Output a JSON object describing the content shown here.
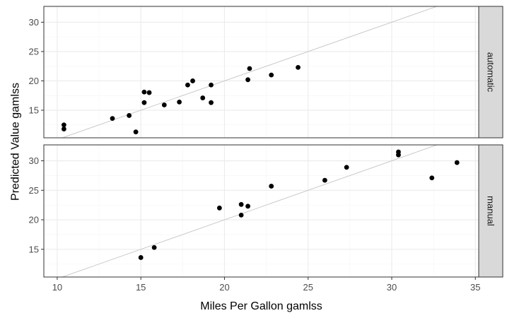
{
  "chart_data": {
    "type": "scatter",
    "xlabel": "Miles Per Gallon gamlss",
    "ylabel": "Predicted Value gamlss",
    "xlim": [
      9.2,
      35.2
    ],
    "ylim": [
      10.3,
      32.7
    ],
    "x_ticks": [
      10,
      15,
      20,
      25,
      30,
      35
    ],
    "y_ticks": [
      15,
      20,
      25,
      30
    ],
    "grid": true,
    "reference_line": "y = x",
    "colors": {
      "point": "#000000",
      "reference_line": "#bdbdbd",
      "grid_major": "#ebebeb",
      "grid_minor": "#f5f5f5",
      "panel_border": "#333333",
      "strip_fill": "#d9d9d9",
      "background": "#ffffff"
    },
    "panels": [
      {
        "label": "automatic",
        "points": [
          {
            "x": 10.4,
            "y": 12.5
          },
          {
            "x": 10.4,
            "y": 11.8
          },
          {
            "x": 13.3,
            "y": 13.6
          },
          {
            "x": 14.3,
            "y": 14.1
          },
          {
            "x": 14.7,
            "y": 11.3
          },
          {
            "x": 15.2,
            "y": 18.1
          },
          {
            "x": 15.2,
            "y": 16.3
          },
          {
            "x": 15.5,
            "y": 18.0
          },
          {
            "x": 16.4,
            "y": 15.9
          },
          {
            "x": 17.3,
            "y": 16.4
          },
          {
            "x": 17.8,
            "y": 19.3
          },
          {
            "x": 18.1,
            "y": 20.0
          },
          {
            "x": 18.7,
            "y": 17.1
          },
          {
            "x": 19.2,
            "y": 19.3
          },
          {
            "x": 19.2,
            "y": 16.3
          },
          {
            "x": 21.4,
            "y": 20.2
          },
          {
            "x": 21.5,
            "y": 22.1
          },
          {
            "x": 22.8,
            "y": 21.0
          },
          {
            "x": 24.4,
            "y": 22.3
          }
        ]
      },
      {
        "label": "manual",
        "points": [
          {
            "x": 15.0,
            "y": 13.6
          },
          {
            "x": 15.8,
            "y": 15.3
          },
          {
            "x": 19.7,
            "y": 22.0
          },
          {
            "x": 21.0,
            "y": 22.6
          },
          {
            "x": 21.0,
            "y": 20.8
          },
          {
            "x": 21.4,
            "y": 22.3
          },
          {
            "x": 22.8,
            "y": 25.7
          },
          {
            "x": 26.0,
            "y": 26.7
          },
          {
            "x": 27.3,
            "y": 28.9
          },
          {
            "x": 30.4,
            "y": 31.5
          },
          {
            "x": 30.4,
            "y": 31.0
          },
          {
            "x": 32.4,
            "y": 27.1
          },
          {
            "x": 33.9,
            "y": 29.7
          }
        ]
      }
    ]
  }
}
